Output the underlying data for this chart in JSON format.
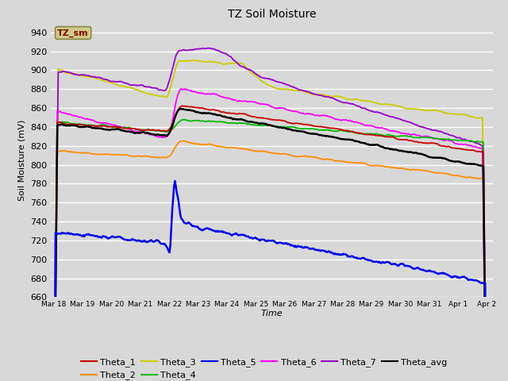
{
  "title": "TZ Soil Moisture",
  "xlabel": "Time",
  "ylabel": "Soil Moisture (mV)",
  "ylim": [
    660,
    950
  ],
  "yticks": [
    660,
    680,
    700,
    720,
    740,
    760,
    780,
    800,
    820,
    840,
    860,
    880,
    900,
    920,
    940
  ],
  "bg_color": "#d8d8d8",
  "plot_bg_color": "#d8d8d8",
  "grid_color": "#ffffff",
  "series_colors": {
    "Theta_1": "#cc0000",
    "Theta_2": "#ff8c00",
    "Theta_3": "#cccc00",
    "Theta_4": "#00bb00",
    "Theta_5": "#0000ee",
    "Theta_6": "#ff00ff",
    "Theta_7": "#9900cc",
    "Theta_avg": "#000000"
  },
  "legend_box_facecolor": "#cccc88",
  "legend_box_edgecolor": "#888844",
  "legend_text_color": "#880000",
  "tick_labels": [
    "Mar 18",
    "Mar 19",
    "Mar 20",
    "Mar 21",
    "Mar 22",
    "Mar 23",
    "Mar 24",
    "Mar 25",
    "Mar 26",
    "Mar 27",
    "Mar 28",
    "Mar 29",
    "Mar 30",
    "Mar 31",
    "Apr 1",
    "Apr 2"
  ]
}
